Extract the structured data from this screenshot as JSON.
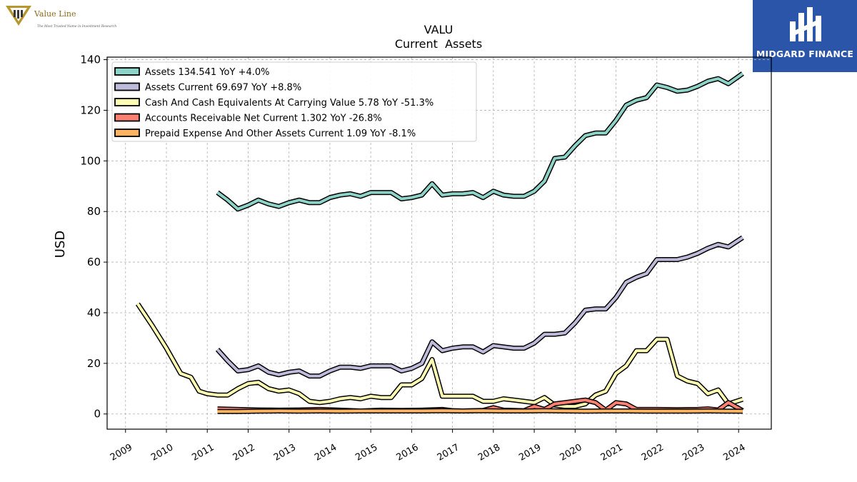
{
  "branding": {
    "valueline_name": "Value Line",
    "valueline_tagline": "The Most Trusted Name in Investment Research",
    "midgard_name": "MIDGARD FINANCE",
    "brand_blue": "#2a55a8",
    "valueline_gold": "#b8962e"
  },
  "chart_data": {
    "type": "line",
    "title": "VALU",
    "subtitle": "Current  Assets",
    "ylabel": "USD",
    "xlabel": "",
    "ylim": [
      -6,
      141
    ],
    "xlim": [
      2008.55,
      2024.8
    ],
    "yticks": [
      0,
      20,
      40,
      60,
      80,
      100,
      120,
      140
    ],
    "xticks": [
      2009,
      2010,
      2011,
      2012,
      2013,
      2014,
      2015,
      2016,
      2017,
      2018,
      2019,
      2020,
      2021,
      2022,
      2023,
      2024
    ],
    "grid": true,
    "legend_position": "top-left",
    "series": [
      {
        "name": "Assets  134.541 YoY +4.0%",
        "color": "#8dd3c7",
        "points": [
          [
            2011.25,
            87.5
          ],
          [
            2011.5,
            84.5
          ],
          [
            2011.75,
            81
          ],
          [
            2012.0,
            82.5
          ],
          [
            2012.25,
            84.5
          ],
          [
            2012.5,
            83
          ],
          [
            2012.75,
            82
          ],
          [
            2013.0,
            83.5
          ],
          [
            2013.25,
            84.5
          ],
          [
            2013.5,
            83.5
          ],
          [
            2013.75,
            83.5
          ],
          [
            2014.0,
            85.5
          ],
          [
            2014.25,
            86.5
          ],
          [
            2014.5,
            87
          ],
          [
            2014.75,
            86
          ],
          [
            2015.0,
            87.5
          ],
          [
            2015.25,
            87.5
          ],
          [
            2015.5,
            87.5
          ],
          [
            2015.75,
            85
          ],
          [
            2016.0,
            85.5
          ],
          [
            2016.25,
            86.5
          ],
          [
            2016.5,
            91
          ],
          [
            2016.75,
            86.5
          ],
          [
            2017.0,
            87
          ],
          [
            2017.25,
            87
          ],
          [
            2017.5,
            87.5
          ],
          [
            2017.75,
            85.5
          ],
          [
            2018.0,
            88
          ],
          [
            2018.25,
            86.5
          ],
          [
            2018.5,
            86
          ],
          [
            2018.75,
            86
          ],
          [
            2019.0,
            88
          ],
          [
            2019.25,
            92
          ],
          [
            2019.5,
            101
          ],
          [
            2019.75,
            101.5
          ],
          [
            2020.0,
            106
          ],
          [
            2020.25,
            110
          ],
          [
            2020.5,
            111
          ],
          [
            2020.75,
            111
          ],
          [
            2021.0,
            116
          ],
          [
            2021.25,
            122
          ],
          [
            2021.5,
            124
          ],
          [
            2021.75,
            125
          ],
          [
            2022.0,
            130
          ],
          [
            2022.25,
            129
          ],
          [
            2022.5,
            127.5
          ],
          [
            2022.75,
            128
          ],
          [
            2023.0,
            129.5
          ],
          [
            2023.25,
            131.5
          ],
          [
            2023.5,
            132.5
          ],
          [
            2023.75,
            130.5
          ],
          [
            2024.1,
            134.5
          ]
        ]
      },
      {
        "name": "Assets Current  69.697 YoY +8.8%",
        "color": "#bebada",
        "points": [
          [
            2011.25,
            25.5
          ],
          [
            2011.5,
            21
          ],
          [
            2011.75,
            17
          ],
          [
            2012.0,
            17.5
          ],
          [
            2012.25,
            19
          ],
          [
            2012.5,
            16.5
          ],
          [
            2012.75,
            15.5
          ],
          [
            2013.0,
            16.5
          ],
          [
            2013.25,
            17
          ],
          [
            2013.5,
            15
          ],
          [
            2013.75,
            15
          ],
          [
            2014.0,
            17
          ],
          [
            2014.25,
            18.5
          ],
          [
            2014.5,
            18.5
          ],
          [
            2014.75,
            18
          ],
          [
            2015.0,
            19
          ],
          [
            2015.25,
            19
          ],
          [
            2015.5,
            19
          ],
          [
            2015.75,
            17
          ],
          [
            2016.0,
            18
          ],
          [
            2016.25,
            20
          ],
          [
            2016.5,
            28.5
          ],
          [
            2016.75,
            25
          ],
          [
            2017.0,
            26
          ],
          [
            2017.25,
            26.5
          ],
          [
            2017.5,
            26.5
          ],
          [
            2017.75,
            24.5
          ],
          [
            2018.0,
            27
          ],
          [
            2018.25,
            26.5
          ],
          [
            2018.5,
            26
          ],
          [
            2018.75,
            26
          ],
          [
            2019.0,
            28
          ],
          [
            2019.25,
            31.5
          ],
          [
            2019.5,
            31.5
          ],
          [
            2019.75,
            32
          ],
          [
            2020.0,
            36
          ],
          [
            2020.25,
            41
          ],
          [
            2020.5,
            41.5
          ],
          [
            2020.75,
            41.5
          ],
          [
            2021.0,
            46
          ],
          [
            2021.25,
            52
          ],
          [
            2021.5,
            54
          ],
          [
            2021.75,
            55.5
          ],
          [
            2022.0,
            61
          ],
          [
            2022.25,
            61
          ],
          [
            2022.5,
            61
          ],
          [
            2022.75,
            62
          ],
          [
            2023.0,
            63.5
          ],
          [
            2023.25,
            65.5
          ],
          [
            2023.5,
            67
          ],
          [
            2023.75,
            66
          ],
          [
            2024.1,
            69.7
          ]
        ]
      },
      {
        "name": "Cash And Cash Equivalents At Carrying Value  5.78 YoY -51.3%",
        "color": "#ffffb3",
        "points": [
          [
            2009.3,
            43.5
          ],
          [
            2009.65,
            35
          ],
          [
            2010.0,
            26
          ],
          [
            2010.35,
            16
          ],
          [
            2010.6,
            14.5
          ],
          [
            2010.8,
            9
          ],
          [
            2011.0,
            8
          ],
          [
            2011.25,
            7.5
          ],
          [
            2011.5,
            7.5
          ],
          [
            2011.75,
            10
          ],
          [
            2012.0,
            12
          ],
          [
            2012.25,
            12.5
          ],
          [
            2012.5,
            10
          ],
          [
            2012.75,
            9
          ],
          [
            2013.0,
            9.5
          ],
          [
            2013.25,
            8
          ],
          [
            2013.5,
            5
          ],
          [
            2013.75,
            4.5
          ],
          [
            2014.0,
            5
          ],
          [
            2014.25,
            6
          ],
          [
            2014.5,
            6.5
          ],
          [
            2014.75,
            6
          ],
          [
            2015.0,
            7
          ],
          [
            2015.25,
            6.5
          ],
          [
            2015.5,
            6.5
          ],
          [
            2015.75,
            11.5
          ],
          [
            2016.0,
            11.5
          ],
          [
            2016.25,
            14
          ],
          [
            2016.5,
            21.5
          ],
          [
            2016.75,
            7
          ],
          [
            2017.0,
            7
          ],
          [
            2017.25,
            7
          ],
          [
            2017.5,
            7
          ],
          [
            2017.75,
            5
          ],
          [
            2018.0,
            5
          ],
          [
            2018.25,
            6
          ],
          [
            2018.5,
            5.5
          ],
          [
            2018.75,
            5
          ],
          [
            2019.0,
            4.5
          ],
          [
            2019.25,
            6.5
          ],
          [
            2019.5,
            3.5
          ],
          [
            2019.75,
            3
          ],
          [
            2020.0,
            3
          ],
          [
            2020.25,
            4
          ],
          [
            2020.5,
            7.5
          ],
          [
            2020.75,
            9
          ],
          [
            2021.0,
            16
          ],
          [
            2021.25,
            19
          ],
          [
            2021.5,
            25
          ],
          [
            2021.75,
            25
          ],
          [
            2022.0,
            29.5
          ],
          [
            2022.25,
            29.5
          ],
          [
            2022.5,
            15
          ],
          [
            2022.75,
            13
          ],
          [
            2023.0,
            12
          ],
          [
            2023.25,
            8
          ],
          [
            2023.5,
            9.5
          ],
          [
            2023.75,
            4
          ],
          [
            2024.1,
            5.78
          ]
        ]
      },
      {
        "name": "Accounts Receivable Net Current  1.302 YoY -26.8%",
        "color": "#fb8072",
        "points": [
          [
            2011.25,
            2
          ],
          [
            2011.75,
            1.8
          ],
          [
            2012.25,
            1.6
          ],
          [
            2012.75,
            1.5
          ],
          [
            2013.25,
            1.6
          ],
          [
            2013.75,
            1.8
          ],
          [
            2014.25,
            1.5
          ],
          [
            2014.75,
            1.2
          ],
          [
            2015.25,
            1.5
          ],
          [
            2015.75,
            1.4
          ],
          [
            2016.25,
            1.5
          ],
          [
            2016.75,
            1.8
          ],
          [
            2017.0,
            1.3
          ],
          [
            2017.25,
            1.2
          ],
          [
            2017.75,
            1.4
          ],
          [
            2018.0,
            2.5
          ],
          [
            2018.25,
            1.5
          ],
          [
            2018.75,
            1.3
          ],
          [
            2019.0,
            3
          ],
          [
            2019.25,
            1.8
          ],
          [
            2019.5,
            4
          ],
          [
            2019.75,
            4.5
          ],
          [
            2020.0,
            5
          ],
          [
            2020.25,
            5.5
          ],
          [
            2020.5,
            4.5
          ],
          [
            2020.75,
            1.5
          ],
          [
            2021.0,
            4.5
          ],
          [
            2021.25,
            4
          ],
          [
            2021.5,
            1.8
          ],
          [
            2021.75,
            1.8
          ],
          [
            2022.0,
            1.8
          ],
          [
            2022.5,
            1.7
          ],
          [
            2023.0,
            1.8
          ],
          [
            2023.25,
            2
          ],
          [
            2023.5,
            1.6
          ],
          [
            2023.75,
            4.5
          ],
          [
            2024.1,
            1.302
          ]
        ]
      },
      {
        "name": "Prepaid Expense And Other Assets Current  1.09 YoY -8.1%",
        "color": "#fdb462",
        "points": [
          [
            2011.25,
            1
          ],
          [
            2011.75,
            1
          ],
          [
            2012.25,
            1.1
          ],
          [
            2012.75,
            1.2
          ],
          [
            2013.25,
            1.1
          ],
          [
            2013.75,
            1.2
          ],
          [
            2014.25,
            1.1
          ],
          [
            2014.75,
            1.2
          ],
          [
            2015.25,
            1.2
          ],
          [
            2015.75,
            1.2
          ],
          [
            2016.25,
            1.2
          ],
          [
            2016.75,
            1.3
          ],
          [
            2017.25,
            1.2
          ],
          [
            2017.75,
            1.3
          ],
          [
            2018.25,
            1.2
          ],
          [
            2018.75,
            1.2
          ],
          [
            2019.25,
            1.3
          ],
          [
            2019.75,
            1.2
          ],
          [
            2020.25,
            1.1
          ],
          [
            2020.75,
            1.2
          ],
          [
            2021.25,
            1.2
          ],
          [
            2021.75,
            1.1
          ],
          [
            2022.25,
            1.1
          ],
          [
            2022.75,
            1.1
          ],
          [
            2023.25,
            1.2
          ],
          [
            2023.75,
            1.1
          ],
          [
            2024.1,
            1.09
          ]
        ]
      }
    ]
  }
}
